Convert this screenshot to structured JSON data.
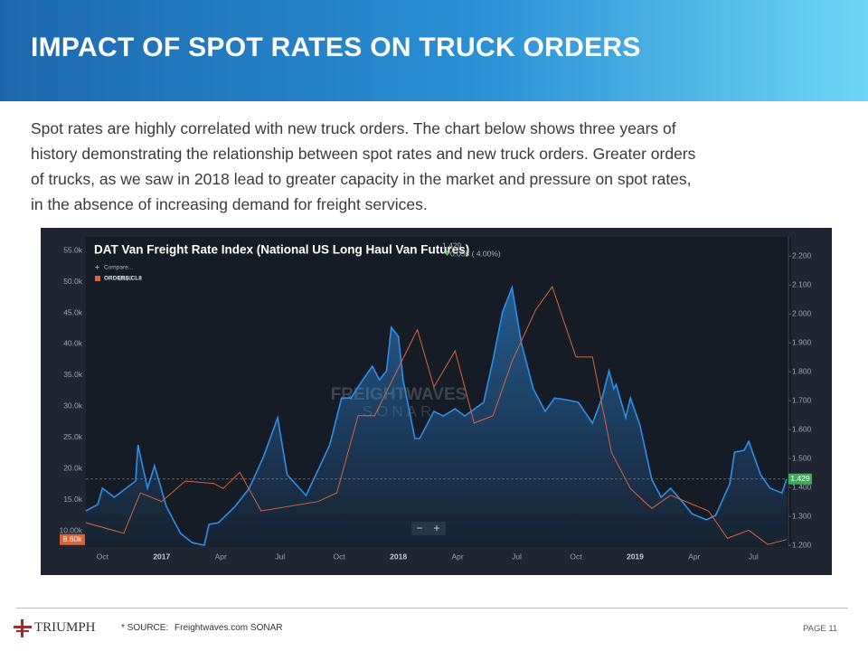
{
  "header": {
    "title": "IMPACT OF SPOT RATES ON TRUCK ORDERS"
  },
  "body": {
    "lines": [
      "Spot rates are highly correlated with new truck orders. The chart below shows three years of",
      "history demonstrating the relationship between spot rates and new truck orders. Greater orders",
      "of trucks, as we saw in 2018 lead to greater capacity in the market and pressure on spot rates,",
      "in the absence of increasing demand for freight services."
    ]
  },
  "chart_data": {
    "type": "line",
    "title": "DAT Van Freight Rate Index (National US Long Haul Van Futures)",
    "header_value": "1.429",
    "change": "0.055 ( 4.00%)",
    "legend_value": "8599",
    "watermark": [
      "FREIGHTWAVES",
      "SONAR"
    ],
    "zoom": [
      "−",
      "+"
    ],
    "xlim": [
      2016.68,
      2019.64
    ],
    "xticks": [
      {
        "value": 2016.75,
        "label": "Oct"
      },
      2017,
      {
        "value": 2017.25,
        "label": "Apr"
      },
      {
        "value": 2017.5,
        "label": "Jul"
      },
      {
        "value": 2017.75,
        "label": "Oct"
      },
      2018,
      {
        "value": 2018.25,
        "label": "Apr"
      },
      {
        "value": 2018.5,
        "label": "Jul"
      },
      {
        "value": 2018.75,
        "label": "Oct"
      },
      2019,
      {
        "value": 2019.25,
        "label": "Apr"
      },
      {
        "value": 2019.5,
        "label": "Jul"
      }
    ],
    "ylim": [
      7400,
      57200
    ],
    "yticks": [
      {
        "value": 10000,
        "label": "10.00k"
      },
      {
        "value": 15000,
        "label": "15.0k"
      },
      {
        "value": 20000,
        "label": "20.0k"
      },
      {
        "value": 25000,
        "label": "25.0k"
      },
      {
        "value": 30000,
        "label": "30.0k"
      },
      {
        "value": 35000,
        "label": "35.0k"
      },
      {
        "value": 40000,
        "label": "40.0k"
      },
      {
        "value": 45000,
        "label": "45.0k"
      },
      {
        "value": 50000,
        "label": "50.0k"
      },
      {
        "value": 55000,
        "label": "55.0k"
      }
    ],
    "y2lim": [
      1.194,
      2.266
    ],
    "y2ticks": [
      {
        "value": 1.2,
        "label": "1.200"
      },
      {
        "value": 1.3,
        "label": "1.300"
      },
      {
        "value": 1.4,
        "label": "1.400"
      },
      {
        "value": 1.5,
        "label": "1.500"
      },
      {
        "value": 1.6,
        "label": "1.600"
      },
      {
        "value": 1.7,
        "label": "1.700"
      },
      {
        "value": 1.8,
        "label": "1.800"
      },
      {
        "value": 1.9,
        "label": "1.900"
      },
      {
        "value": 2.0,
        "label": "2.000"
      },
      {
        "value": 2.1,
        "label": "2.100"
      },
      {
        "value": 2.2,
        "label": "2.200"
      }
    ],
    "series": [
      {
        "name": "Compare...",
        "color": "#2f8fe6",
        "axis": "y2",
        "area": true,
        "last_value_label": "1.429",
        "x": [
          2016.68,
          2016.73,
          2016.75,
          2016.8,
          2016.89,
          2016.9,
          2016.94,
          2016.97,
          2017.02,
          2017.08,
          2017.13,
          2017.18,
          2017.2,
          2017.24,
          2017.31,
          2017.37,
          2017.43,
          2017.49,
          2017.53,
          2017.61,
          2017.66,
          2017.71,
          2017.76,
          2017.8,
          2017.85,
          2017.89,
          2017.92,
          2017.95,
          2017.97,
          2018.0,
          2018.02,
          2018.07,
          2018.09,
          2018.15,
          2018.19,
          2018.24,
          2018.28,
          2018.36,
          2018.4,
          2018.44,
          2018.48,
          2018.52,
          2018.57,
          2018.62,
          2018.66,
          2018.71,
          2018.76,
          2018.82,
          2018.86,
          2018.89,
          2018.91,
          2018.92,
          2018.96,
          2018.98,
          2019.02,
          2019.07,
          2019.11,
          2019.15,
          2019.2,
          2019.24,
          2019.3,
          2019.34,
          2019.4,
          2019.42,
          2019.46,
          2019.48,
          2019.53,
          2019.57,
          2019.62,
          2019.64
        ],
        "values": [
          1.319,
          1.341,
          1.397,
          1.366,
          1.422,
          1.547,
          1.397,
          1.475,
          1.334,
          1.241,
          1.209,
          1.2,
          1.272,
          1.278,
          1.334,
          1.397,
          1.506,
          1.641,
          1.444,
          1.372,
          1.459,
          1.547,
          1.709,
          1.709,
          1.772,
          1.819,
          1.772,
          1.803,
          1.953,
          1.922,
          1.772,
          1.569,
          1.569,
          1.663,
          1.647,
          1.672,
          1.647,
          1.694,
          1.841,
          2.006,
          2.091,
          1.897,
          1.741,
          1.663,
          1.709,
          1.703,
          1.694,
          1.622,
          1.709,
          1.803,
          1.741,
          1.756,
          1.641,
          1.709,
          1.616,
          1.428,
          1.366,
          1.397,
          1.35,
          1.309,
          1.288,
          1.303,
          1.413,
          1.522,
          1.528,
          1.559,
          1.444,
          1.397,
          1.381,
          1.429
        ]
      },
      {
        "name": "ORDERS.CL8",
        "color": "#d8653a",
        "axis": "y",
        "area": false,
        "last_value_label": "8.60k",
        "x": [
          2016.68,
          2016.84,
          2016.91,
          2017.0,
          2017.1,
          2017.22,
          2017.26,
          2017.33,
          2017.42,
          2017.66,
          2017.74,
          2017.83,
          2017.9,
          2018.08,
          2018.15,
          2018.24,
          2018.32,
          2018.4,
          2018.48,
          2018.58,
          2018.65,
          2018.75,
          2018.82,
          2018.9,
          2018.98,
          2019.07,
          2019.15,
          2019.31,
          2019.39,
          2019.48,
          2019.56,
          2019.64
        ],
        "values": [
          11300,
          9600,
          16100,
          14700,
          18000,
          17600,
          16800,
          19400,
          13200,
          14700,
          16100,
          28500,
          28500,
          42300,
          33100,
          38900,
          27300,
          28500,
          37200,
          45500,
          49200,
          37900,
          37900,
          22600,
          16800,
          13600,
          15700,
          13200,
          8800,
          10100,
          7800,
          8599
        ]
      }
    ]
  },
  "footer": {
    "logo": "TRIUMPH",
    "source_label": "* SOURCE:",
    "source": "Freightwaves.com SONAR",
    "page": "PAGE 11"
  }
}
